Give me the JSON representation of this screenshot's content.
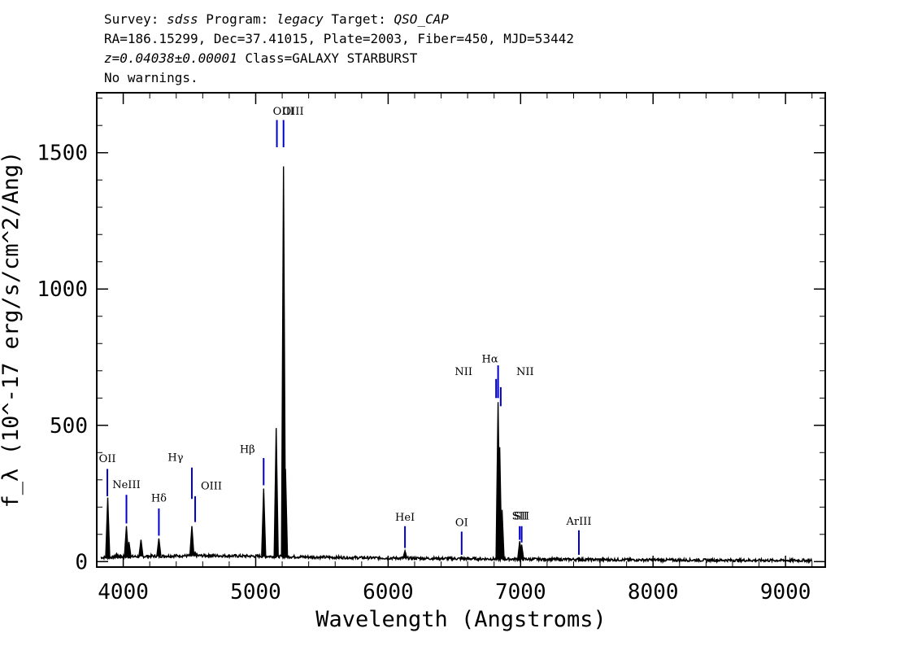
{
  "header": {
    "survey_label": "Survey:",
    "survey": "sdss",
    "program_label": "Program:",
    "program": "legacy",
    "target_label": "Target:",
    "target": "QSO_CAP",
    "coords": "RA=186.15299, Dec=37.41015, Plate=2003, Fiber=450, MJD=53442",
    "redshift": "z=0.04038±0.00001",
    "class": "Class=GALAXY STARBURST",
    "warnings": "No warnings."
  },
  "chart_data": {
    "type": "line",
    "xlabel": "Wavelength (Angstroms)",
    "ylabel": "f_λ (10^-17 erg/s/cm^2/Ang)",
    "xlim": [
      3800,
      9300
    ],
    "ylim": [
      -20,
      1720
    ],
    "x_ticks": [
      4000,
      5000,
      6000,
      7000,
      8000,
      9000
    ],
    "y_ticks": [
      0,
      500,
      1000,
      1500
    ],
    "grid": false,
    "continuum": [
      {
        "x": 3830,
        "y": 15
      },
      {
        "x": 4200,
        "y": 20
      },
      {
        "x": 4600,
        "y": 22
      },
      {
        "x": 5000,
        "y": 20
      },
      {
        "x": 5500,
        "y": 16
      },
      {
        "x": 6000,
        "y": 13
      },
      {
        "x": 6500,
        "y": 11
      },
      {
        "x": 7000,
        "y": 9
      },
      {
        "x": 8000,
        "y": 6
      },
      {
        "x": 9200,
        "y": 4
      }
    ],
    "peaks": [
      {
        "x": 3880,
        "y": 28
      },
      {
        "x": 3950,
        "y": 30
      },
      {
        "x": 3978,
        "y": 25
      },
      {
        "x": 3883,
        "y": 235
      },
      {
        "x": 4024,
        "y": 130
      },
      {
        "x": 4043,
        "y": 72
      },
      {
        "x": 4134,
        "y": 80
      },
      {
        "x": 4269,
        "y": 85
      },
      {
        "x": 4518,
        "y": 130
      },
      {
        "x": 4543,
        "y": 35
      },
      {
        "x": 4654,
        "y": 25
      },
      {
        "x": 5060,
        "y": 268
      },
      {
        "x": 5155,
        "y": 490
      },
      {
        "x": 5210,
        "y": 1450
      },
      {
        "x": 5225,
        "y": 340
      },
      {
        "x": 6127,
        "y": 40
      },
      {
        "x": 6555,
        "y": 18
      },
      {
        "x": 6830,
        "y": 585
      },
      {
        "x": 6842,
        "y": 420
      },
      {
        "x": 6860,
        "y": 190
      },
      {
        "x": 6993,
        "y": 75
      },
      {
        "x": 7008,
        "y": 62
      },
      {
        "x": 7440,
        "y": 15
      }
    ],
    "emission_lines": [
      {
        "label": "OII",
        "x": 3880,
        "y_low": 240,
        "y_high": 340,
        "label_y": 365,
        "label_dx": 0
      },
      {
        "label": "NeIII",
        "x": 4024,
        "y_low": 140,
        "y_high": 245,
        "label_y": 270,
        "label_dx": 0
      },
      {
        "label": "Hδ",
        "x": 4269,
        "y_low": 95,
        "y_high": 195,
        "label_y": 220,
        "label_dx": 0
      },
      {
        "label": "Hγ",
        "x": 4518,
        "y_low": 230,
        "y_high": 345,
        "label_y": 370,
        "label_dx": -20
      },
      {
        "label": "OIII",
        "x": 4543,
        "y_low": 145,
        "y_high": 240,
        "label_y": 265,
        "label_dx": 20
      },
      {
        "label": "Hβ",
        "x": 5060,
        "y_low": 280,
        "y_high": 380,
        "label_y": 400,
        "label_dx": -20
      },
      {
        "label": "OIII",
        "x": 5160,
        "y_low": 1520,
        "y_high": 1620,
        "label_y": 1640,
        "label_dx": 20
      },
      {
        "label": "OIII",
        "x": 5210,
        "y_low": 1520,
        "y_high": 1620,
        "label_y": 1640,
        "label_dx": 0
      },
      {
        "label": "HeI",
        "x": 6127,
        "y_low": 50,
        "y_high": 130,
        "label_y": 150,
        "label_dx": 0
      },
      {
        "label": "OI",
        "x": 6555,
        "y_low": 25,
        "y_high": 110,
        "label_y": 130,
        "label_dx": 0
      },
      {
        "label": "NII",
        "x": 6815,
        "y_low": 600,
        "y_high": 670,
        "label_y": 685,
        "label_dx": -40
      },
      {
        "label": "Hα",
        "x": 6830,
        "y_low": 600,
        "y_high": 720,
        "label_y": 730,
        "label_dx": -10
      },
      {
        "label": "NII",
        "x": 6850,
        "y_low": 570,
        "y_high": 640,
        "label_y": 685,
        "label_dx": 30
      },
      {
        "label": "SII",
        "x": 6993,
        "y_low": 80,
        "y_high": 130,
        "label_y": 155,
        "label_dx": 0
      },
      {
        "label": "SII",
        "x": 7008,
        "y_low": 70,
        "y_high": 130,
        "label_y": 155,
        "label_dx": 0
      },
      {
        "label": "ArIII",
        "x": 7440,
        "y_low": 25,
        "y_high": 115,
        "label_y": 135,
        "label_dx": 0
      }
    ],
    "colors": {
      "spectrum": "#000000",
      "line_marker": "#0000cc",
      "axis": "#000000"
    }
  }
}
